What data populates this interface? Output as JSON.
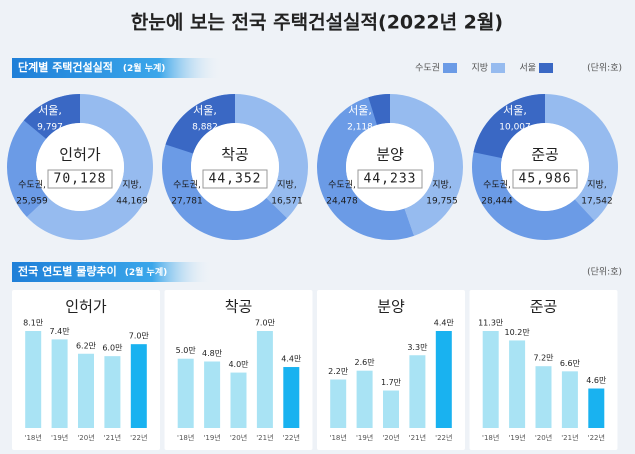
{
  "title": "한눈에 보는 전국 주택건설실적(2022년 2월)",
  "sections": [
    {
      "title": "단계별 주택건설실적",
      "note": "(2월 누계)",
      "unit": "(단위:호)"
    },
    {
      "title": "전국 연도별 물량추이",
      "note": "(2월 누계)",
      "unit": "(단위:호)"
    }
  ],
  "legend": [
    {
      "name": "수도권",
      "color": "#6b9be6"
    },
    {
      "name": "지방",
      "color": "#96bbef"
    },
    {
      "name": "서울",
      "color": "#3a68c4"
    }
  ],
  "chart_data": [
    {
      "type": "donut",
      "title": "인허가",
      "center_value": "70,128",
      "categories": [
        "수도권,",
        "지방,",
        "서울,"
      ],
      "values": [
        25959,
        44169,
        9797
      ],
      "value_labels": [
        "25,959",
        "44,169",
        "9,797"
      ]
    },
    {
      "type": "donut",
      "title": "착공",
      "center_value": "44,352",
      "categories": [
        "수도권,",
        "지방,",
        "서울,"
      ],
      "values": [
        27781,
        16571,
        8882
      ],
      "value_labels": [
        "27,781",
        "16,571",
        "8,882"
      ]
    },
    {
      "type": "donut",
      "title": "분양",
      "center_value": "44,233",
      "categories": [
        "수도권,",
        "지방,",
        "서울,"
      ],
      "values": [
        24478,
        19755,
        2118
      ],
      "value_labels": [
        "24,478",
        "19,755",
        "2,118"
      ]
    },
    {
      "type": "donut",
      "title": "준공",
      "center_value": "45,986",
      "categories": [
        "수도권,",
        "지방,",
        "서울,"
      ],
      "values": [
        28444,
        17542,
        10007
      ],
      "value_labels": [
        "28,444",
        "17,542",
        "10,007"
      ]
    },
    {
      "type": "bar",
      "title": "인허가",
      "categories": [
        "'18년",
        "'19년",
        "'20년",
        "'21년",
        "'22년"
      ],
      "values": [
        8.1,
        7.4,
        6.2,
        6.0,
        7.0
      ],
      "value_labels": [
        "8.1만",
        "7.4만",
        "6.2만",
        "6.0만",
        "7.0만"
      ],
      "colors": [
        "#a9e3f4",
        "#a9e3f4",
        "#a9e3f4",
        "#a9e3f4",
        "#19b2f0"
      ]
    },
    {
      "type": "bar",
      "title": "착공",
      "categories": [
        "'18년",
        "'19년",
        "'20년",
        "'21년",
        "'22년"
      ],
      "values": [
        5.0,
        4.8,
        4.0,
        7.0,
        4.4
      ],
      "value_labels": [
        "5.0만",
        "4.8만",
        "4.0만",
        "7.0만",
        "4.4만"
      ],
      "colors": [
        "#a9e3f4",
        "#a9e3f4",
        "#a9e3f4",
        "#a9e3f4",
        "#19b2f0"
      ]
    },
    {
      "type": "bar",
      "title": "분양",
      "categories": [
        "'18년",
        "'19년",
        "'20년",
        "'21년",
        "'22년"
      ],
      "values": [
        2.2,
        2.6,
        1.7,
        3.3,
        4.4
      ],
      "value_labels": [
        "2.2만",
        "2.6만",
        "1.7만",
        "3.3만",
        "4.4만"
      ],
      "colors": [
        "#a9e3f4",
        "#a9e3f4",
        "#a9e3f4",
        "#a9e3f4",
        "#19b2f0"
      ]
    },
    {
      "type": "bar",
      "title": "준공",
      "categories": [
        "'18년",
        "'19년",
        "'20년",
        "'21년",
        "'22년"
      ],
      "values": [
        11.3,
        10.2,
        7.2,
        6.6,
        4.6
      ],
      "value_labels": [
        "11.3만",
        "10.2만",
        "7.2만",
        "6.6만",
        "4.6만"
      ],
      "colors": [
        "#a9e3f4",
        "#a9e3f4",
        "#a9e3f4",
        "#a9e3f4",
        "#19b2f0"
      ]
    }
  ]
}
